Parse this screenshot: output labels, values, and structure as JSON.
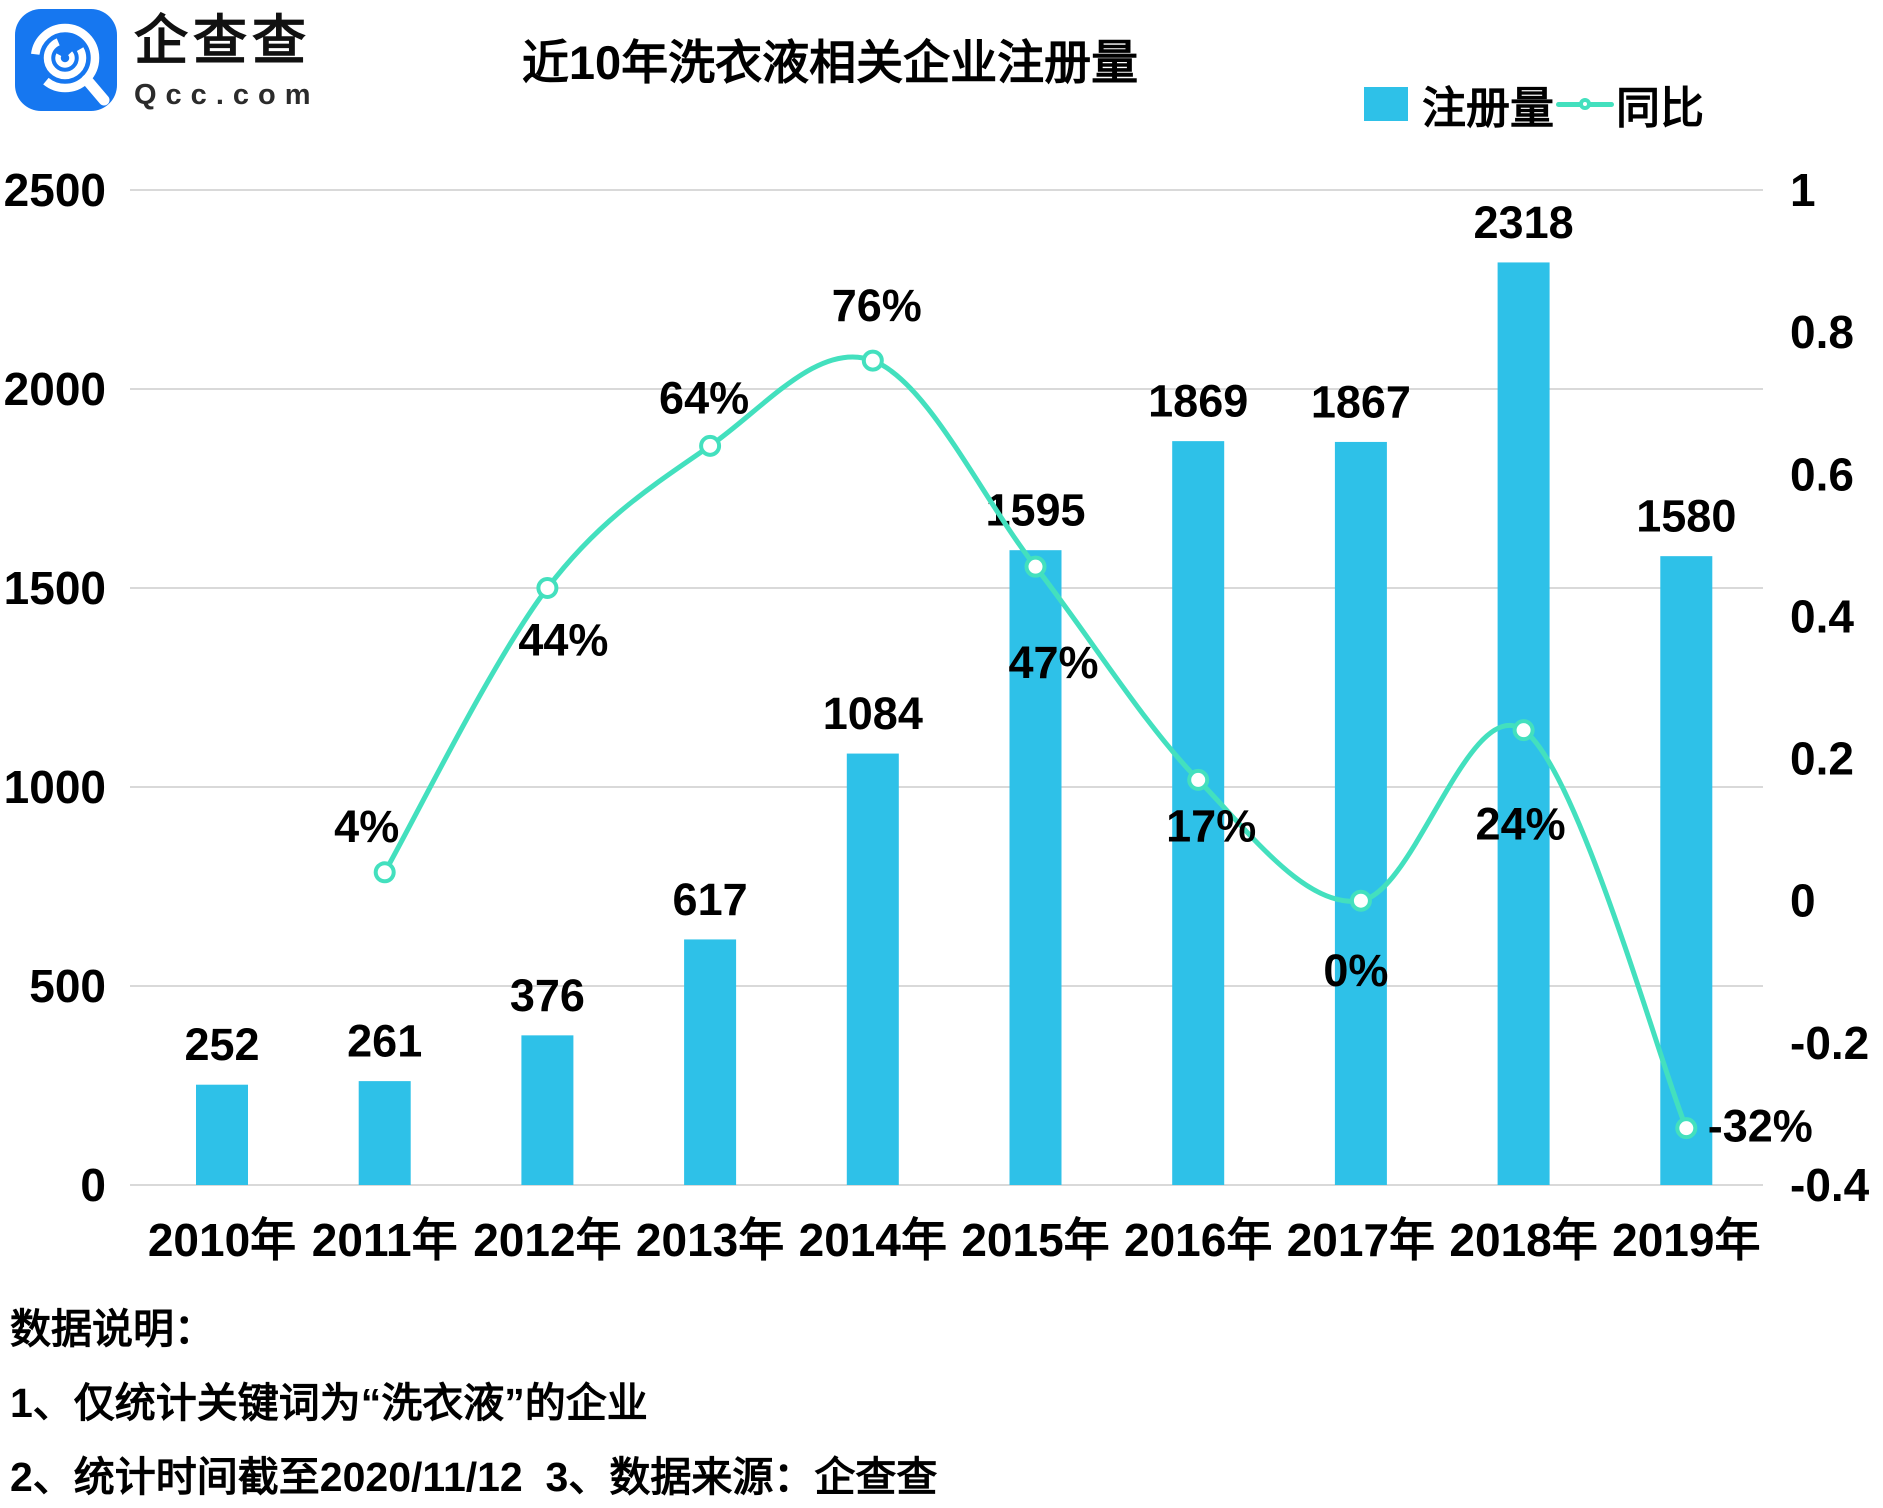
{
  "brand": {
    "name": "企查查",
    "domain": "Qcc.com"
  },
  "title": "近10年洗衣液相关企业注册量",
  "legend": {
    "bar_label": "注册量",
    "line_label": "同比"
  },
  "notes": {
    "heading": "数据说明：",
    "items": [
      "1、仅统计关键词为“洗衣液”的企业",
      "2、统计时间截至2020/11/12  3、数据来源：企查查"
    ]
  },
  "colors": {
    "bar": "#2EC1E8",
    "line": "#43E0BE",
    "marker_fill": "#FFFFFF",
    "grid": "#D9D9D9",
    "text": "#000000",
    "logo_blue": "#1677F0"
  },
  "chart_data": {
    "type": "bar",
    "combo": "bar+line",
    "title": "近10年洗衣液相关企业注册量",
    "categories": [
      "2010年",
      "2011年",
      "2012年",
      "2013年",
      "2014年",
      "2015年",
      "2016年",
      "2017年",
      "2018年",
      "2019年"
    ],
    "series": [
      {
        "name": "注册量",
        "type": "bar",
        "axis": "left",
        "values": [
          252,
          261,
          376,
          617,
          1084,
          1595,
          1869,
          1867,
          2318,
          1580
        ],
        "data_labels": [
          "252",
          "261",
          "376",
          "617",
          "1084",
          "1595",
          "1869",
          "1867",
          "2318",
          "1580"
        ]
      },
      {
        "name": "同比",
        "type": "line",
        "axis": "right",
        "values": [
          null,
          0.04,
          0.44,
          0.64,
          0.76,
          0.47,
          0.17,
          0,
          0.24,
          -0.32
        ],
        "data_labels": [
          "",
          "4%",
          "44%",
          "64%",
          "76%",
          "47%",
          "17%",
          "0%",
          "24%",
          "-32%"
        ]
      }
    ],
    "left_axis": {
      "range": [
        0,
        2500
      ],
      "ticks": [
        0,
        500,
        1000,
        1500,
        2000,
        2500
      ]
    },
    "right_axis": {
      "range": [
        -0.4,
        1
      ],
      "ticks": [
        -0.4,
        -0.2,
        0,
        0.2,
        0.4,
        0.6,
        0.8,
        1
      ]
    },
    "grid": "horizontal",
    "legend_position": "top-right"
  }
}
